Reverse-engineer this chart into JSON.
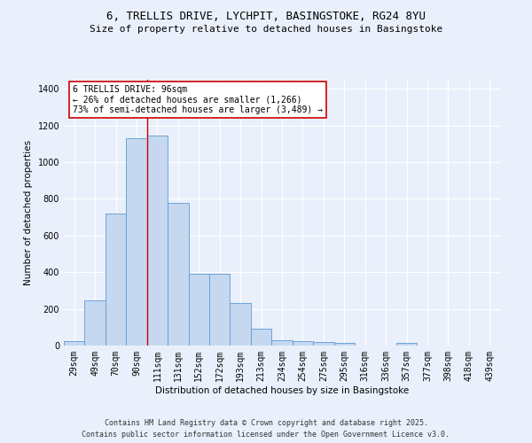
{
  "title_line1": "6, TRELLIS DRIVE, LYCHPIT, BASINGSTOKE, RG24 8YU",
  "title_line2": "Size of property relative to detached houses in Basingstoke",
  "xlabel": "Distribution of detached houses by size in Basingstoke",
  "ylabel": "Number of detached properties",
  "categories": [
    "29sqm",
    "49sqm",
    "70sqm",
    "90sqm",
    "111sqm",
    "131sqm",
    "152sqm",
    "172sqm",
    "193sqm",
    "213sqm",
    "234sqm",
    "254sqm",
    "275sqm",
    "295sqm",
    "316sqm",
    "336sqm",
    "357sqm",
    "377sqm",
    "398sqm",
    "418sqm",
    "439sqm"
  ],
  "values": [
    25,
    245,
    720,
    1130,
    1145,
    780,
    390,
    390,
    230,
    90,
    30,
    25,
    20,
    15,
    0,
    0,
    15,
    0,
    0,
    0,
    0
  ],
  "bar_color": "#c5d8f0",
  "bar_edge_color": "#5b9bd5",
  "background_color": "#eaf0fb",
  "grid_color": "#ffffff",
  "red_line_x": 3.5,
  "annotation_text": "6 TRELLIS DRIVE: 96sqm\n← 26% of detached houses are smaller (1,266)\n73% of semi-detached houses are larger (3,489) →",
  "annotation_box_color": "#ffffff",
  "annotation_box_edge": "#cc0000",
  "ylim": [
    0,
    1450
  ],
  "yticks": [
    0,
    200,
    400,
    600,
    800,
    1000,
    1200,
    1400
  ],
  "footer_line1": "Contains HM Land Registry data © Crown copyright and database right 2025.",
  "footer_line2": "Contains public sector information licensed under the Open Government Licence v3.0.",
  "title_fontsize": 9,
  "subtitle_fontsize": 8,
  "axis_label_fontsize": 7.5,
  "tick_fontsize": 7,
  "annotation_fontsize": 7,
  "footer_fontsize": 6
}
